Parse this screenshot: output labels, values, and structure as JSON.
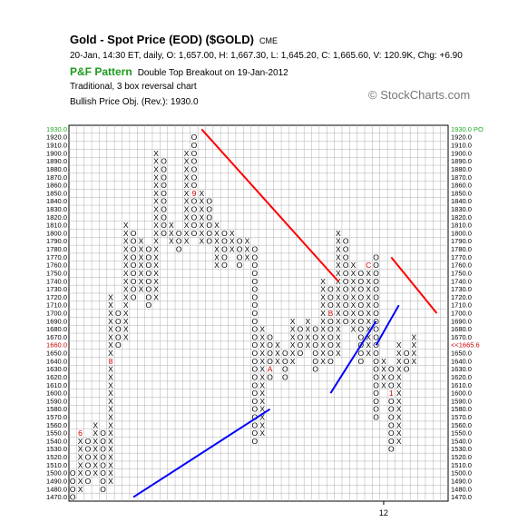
{
  "header": {
    "title": "Gold - Spot Price (EOD) ($GOLD)",
    "exchange": "CME",
    "ohlc_line": "20-Jan, 14:30 ET, daily, O: 1,657.00, H: 1,667.30, L: 1,645.20, C: 1,665.60, V: 120.9K, Chg: +6.90",
    "pattern_label": "P&F Pattern",
    "pattern_text": "Double Top Breakout on 19-Jan-2012",
    "chart_type": "Traditional, 3 box reversal chart",
    "objective": "Bullish Price Obj. (Rev.): 1930.0"
  },
  "brand": "© StockCharts.com",
  "colors": {
    "x_mark": "#000000",
    "o_mark": "#000000",
    "month_marker": "#cc0000",
    "resistance_line": "#ff0000",
    "support_line": "#0000ff",
    "current_price": "#cc0000",
    "objective": "#22aa22",
    "grid": "#b0b0b0"
  },
  "chart_data": {
    "type": "point-and-figure",
    "box_size": 10,
    "reversal": 3,
    "ylim": [
      1470,
      1930
    ],
    "y_ticks": [
      1470,
      1480,
      1490,
      1500,
      1510,
      1520,
      1530,
      1540,
      1550,
      1560,
      1570,
      1580,
      1590,
      1600,
      1610,
      1620,
      1630,
      1640,
      1650,
      1660,
      1670,
      1680,
      1690,
      1700,
      1710,
      1720,
      1730,
      1740,
      1750,
      1760,
      1770,
      1780,
      1790,
      1800,
      1810,
      1820,
      1830,
      1840,
      1850,
      1860,
      1870,
      1880,
      1890,
      1900,
      1910,
      1920,
      1930
    ],
    "objective_price": 1930,
    "objective_left_label": "1930.0",
    "objective_right_label": "1930.0 PO",
    "current_price": 1660,
    "current_left_label": "1660.0",
    "current_right_label": "<<1665.6",
    "x_label": "12",
    "x_label_column": 41,
    "columns": [
      {
        "t": "O",
        "hi": 1500,
        "lo": 1470
      },
      {
        "t": "X",
        "hi": 1550,
        "lo": 1480,
        "m": {
          "1550": "6"
        }
      },
      {
        "t": "O",
        "hi": 1540,
        "lo": 1490
      },
      {
        "t": "X",
        "hi": 1560,
        "lo": 1500,
        "m": {
          "1490": "7"
        }
      },
      {
        "t": "O",
        "hi": 1550,
        "lo": 1480
      },
      {
        "t": "X",
        "hi": 1720,
        "lo": 1490,
        "m": {
          "1640": "8"
        }
      },
      {
        "t": "O",
        "hi": 1700,
        "lo": 1660
      },
      {
        "t": "X",
        "hi": 1810,
        "lo": 1670
      },
      {
        "t": "O",
        "hi": 1800,
        "lo": 1720
      },
      {
        "t": "X",
        "hi": 1790,
        "lo": 1730
      },
      {
        "t": "O",
        "hi": 1780,
        "lo": 1710
      },
      {
        "t": "X",
        "hi": 1900,
        "lo": 1720
      },
      {
        "t": "O",
        "hi": 1890,
        "lo": 1800
      },
      {
        "t": "X",
        "hi": 1810,
        "lo": 1790
      },
      {
        "t": "O",
        "hi": 1800,
        "lo": 1780
      },
      {
        "t": "X",
        "hi": 1900,
        "lo": 1790
      },
      {
        "t": "O",
        "hi": 1920,
        "lo": 1800,
        "m": {
          "1850": "9"
        }
      },
      {
        "t": "X",
        "hi": 1850,
        "lo": 1790
      },
      {
        "t": "O",
        "hi": 1840,
        "lo": 1790
      },
      {
        "t": "X",
        "hi": 1810,
        "lo": 1760
      },
      {
        "t": "O",
        "hi": 1800,
        "lo": 1760
      },
      {
        "t": "X",
        "hi": 1800,
        "lo": 1780
      },
      {
        "t": "O",
        "hi": 1790,
        "lo": 1760
      },
      {
        "t": "X",
        "hi": 1790,
        "lo": 1770
      },
      {
        "t": "O",
        "hi": 1780,
        "lo": 1540
      },
      {
        "t": "X",
        "hi": 1680,
        "lo": 1550
      },
      {
        "t": "O",
        "hi": 1670,
        "lo": 1620,
        "m": {
          "1630": "A"
        }
      },
      {
        "t": "X",
        "hi": 1660,
        "lo": 1640
      },
      {
        "t": "O",
        "hi": 1650,
        "lo": 1620
      },
      {
        "t": "X",
        "hi": 1690,
        "lo": 1640
      },
      {
        "t": "O",
        "hi": 1680,
        "lo": 1650
      },
      {
        "t": "X",
        "hi": 1690,
        "lo": 1660
      },
      {
        "t": "O",
        "hi": 1680,
        "lo": 1630
      },
      {
        "t": "X",
        "hi": 1740,
        "lo": 1640
      },
      {
        "t": "O",
        "hi": 1730,
        "lo": 1640,
        "m": {
          "1700": "B"
        }
      },
      {
        "t": "X",
        "hi": 1800,
        "lo": 1650
      },
      {
        "t": "O",
        "hi": 1790,
        "lo": 1690
      },
      {
        "t": "X",
        "hi": 1760,
        "lo": 1680
      },
      {
        "t": "O",
        "hi": 1750,
        "lo": 1640
      },
      {
        "t": "X",
        "hi": 1760,
        "lo": 1650,
        "m": {
          "1760": "C"
        }
      },
      {
        "t": "O",
        "hi": 1770,
        "lo": 1570
      },
      {
        "t": "X",
        "hi": 1640,
        "lo": 1610
      },
      {
        "t": "O",
        "hi": 1630,
        "lo": 1530,
        "m": {
          "1600": "1"
        }
      },
      {
        "t": "X",
        "hi": 1660,
        "lo": 1540
      },
      {
        "t": "O",
        "hi": 1650,
        "lo": 1630
      },
      {
        "t": "X",
        "hi": 1670,
        "lo": 1640
      }
    ],
    "trendlines": [
      {
        "kind": "resistance",
        "from": [
          17,
          1930
        ],
        "to": [
          35,
          1740
        ]
      },
      {
        "kind": "resistance",
        "from": [
          42,
          1770
        ],
        "to": [
          48,
          1700
        ]
      },
      {
        "kind": "support",
        "from": [
          8,
          1470
        ],
        "to": [
          26,
          1580
        ]
      },
      {
        "kind": "support",
        "from": [
          34,
          1600
        ],
        "to": [
          40,
          1690
        ]
      },
      {
        "kind": "support",
        "from": [
          40,
          1660
        ],
        "to": [
          43,
          1710
        ]
      }
    ]
  }
}
